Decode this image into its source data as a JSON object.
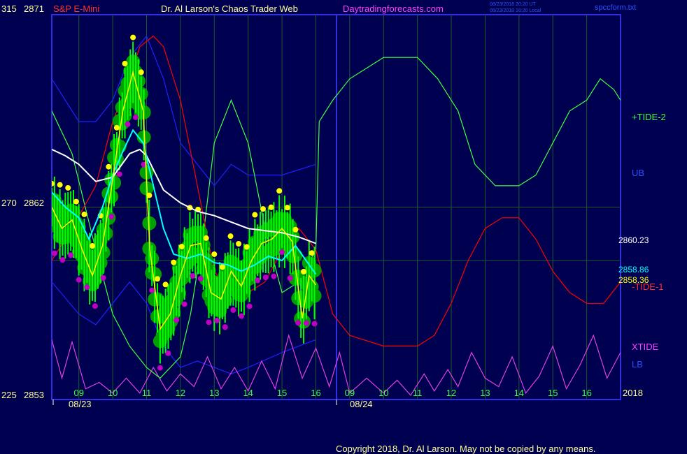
{
  "header": {
    "y_top": "315",
    "price_top": "2871",
    "symbol": "S&P E-Mini",
    "title": "Dr. Al Larson's Chaos Trader Web",
    "site": "Daytradingforecasts.com",
    "stamp_1": "08/23/2018 20:20 UT",
    "stamp_2": "08/23/2018 16:20 Local",
    "file": "spccform.txt"
  },
  "left_axis": [
    {
      "tide": "315",
      "price": "2871"
    },
    {
      "tide": "270",
      "price": "2862"
    },
    {
      "tide": "225",
      "price": "2853"
    }
  ],
  "x_axis": {
    "day1_hours": [
      "09",
      "10",
      "11",
      "12",
      "13",
      "14",
      "15",
      "16"
    ],
    "day2_hours": [
      "09",
      "10",
      "11",
      "12",
      "13",
      "14",
      "15",
      "16"
    ],
    "date1": "08/23",
    "date2": "08/24",
    "year": "2018"
  },
  "right_labels": {
    "tide2": "+TIDE-2",
    "ub": "UB",
    "price_white": "2860.23",
    "price_cyan": "2858.86",
    "price_yellow": "2858.36",
    "tide1": "-TIDE-1",
    "xtide": "XTIDE",
    "lb": "LB"
  },
  "footer": {
    "copyright": "Copyright 2018, Dr. Al Larson. May not be copied by any means."
  },
  "colors": {
    "background": "#000050",
    "frame": "#3030e0",
    "grid": "#1d5a2c",
    "price_bar": "#00ff00",
    "bubble": "#00a000",
    "yellow": "#ffff00",
    "magenta": "#c000c0",
    "cyan": "#00ffff",
    "white": "#ffffff",
    "tide1": "#ff0000",
    "tide2": "#40ff40",
    "bands": "#2020ff",
    "xtide": "#e040e0"
  },
  "chart_data": {
    "type": "line",
    "x_unit": "hour of session (day 1 = 9..16, day 2 = 9..16)",
    "y_unit": "price",
    "ylim": [
      2853,
      2871
    ],
    "series": [
      {
        "name": "+TIDE-2",
        "points": [
          [
            8.2,
            2866.5
          ],
          [
            8.8,
            2864.5
          ],
          [
            9.5,
            2860
          ],
          [
            10,
            2857
          ],
          [
            10.5,
            2855.5
          ],
          [
            11,
            2854.5
          ],
          [
            11.4,
            2854
          ],
          [
            12,
            2855
          ],
          [
            12.3,
            2857
          ],
          [
            12.7,
            2861
          ],
          [
            13,
            2865
          ],
          [
            13.5,
            2867
          ],
          [
            14,
            2865
          ],
          [
            14.5,
            2861
          ],
          [
            15,
            2858
          ],
          [
            15.5,
            2858.5
          ],
          [
            16,
            2860
          ],
          [
            16.1,
            2866
          ],
          [
            16.5,
            2867
          ],
          [
            17,
            2868
          ],
          [
            18,
            2869
          ],
          [
            19,
            2869
          ],
          [
            19.6,
            2868
          ],
          [
            20.2,
            2866.5
          ],
          [
            20.7,
            2864
          ],
          [
            21.3,
            2863
          ],
          [
            22,
            2863
          ],
          [
            22.5,
            2863.5
          ],
          [
            23,
            2865
          ],
          [
            23.5,
            2866.5
          ],
          [
            24,
            2867
          ],
          [
            24.4,
            2868
          ],
          [
            24.8,
            2867.5
          ],
          [
            25,
            2867
          ]
        ]
      },
      {
        "name": "-TIDE-1",
        "points": [
          [
            8.2,
            2859.5
          ],
          [
            8.8,
            2861
          ],
          [
            9.5,
            2863
          ],
          [
            10,
            2866
          ],
          [
            10.5,
            2868
          ],
          [
            10.8,
            2869.5
          ],
          [
            11.2,
            2870
          ],
          [
            11.5,
            2869.5
          ],
          [
            12,
            2867
          ],
          [
            12.5,
            2863
          ],
          [
            13,
            2859
          ],
          [
            13.5,
            2858
          ],
          [
            14,
            2858
          ],
          [
            14.5,
            2858.5
          ],
          [
            15,
            2860
          ],
          [
            15.5,
            2861
          ],
          [
            16,
            2860
          ],
          [
            16.5,
            2857
          ],
          [
            17,
            2856
          ],
          [
            18,
            2855.5
          ],
          [
            19,
            2855.5
          ],
          [
            19.5,
            2856
          ],
          [
            20,
            2857.5
          ],
          [
            20.5,
            2859.5
          ],
          [
            21,
            2861
          ],
          [
            21.5,
            2861.5
          ],
          [
            22,
            2861.5
          ],
          [
            22.5,
            2860.5
          ],
          [
            23,
            2859
          ],
          [
            23.5,
            2858
          ],
          [
            24,
            2857.5
          ],
          [
            24.5,
            2857.5
          ],
          [
            25,
            2858.5
          ]
        ]
      },
      {
        "name": "UB",
        "points": [
          [
            8.2,
            2868
          ],
          [
            9,
            2866
          ],
          [
            9.5,
            2866
          ],
          [
            10,
            2867
          ],
          [
            10.5,
            2869
          ],
          [
            11,
            2870
          ],
          [
            11.5,
            2868
          ],
          [
            12,
            2865
          ],
          [
            12.5,
            2864
          ],
          [
            13,
            2863
          ],
          [
            13.5,
            2864
          ],
          [
            14,
            2863.5
          ],
          [
            15,
            2863.5
          ],
          [
            16,
            2864
          ]
        ]
      },
      {
        "name": "LB",
        "points": [
          [
            8.2,
            2858.5
          ],
          [
            9,
            2857
          ],
          [
            9.5,
            2856.5
          ],
          [
            10,
            2857.5
          ],
          [
            10.5,
            2858.5
          ],
          [
            11,
            2857.5
          ],
          [
            11.5,
            2855.5
          ],
          [
            12,
            2854.5
          ],
          [
            12.5,
            2854.8
          ],
          [
            13,
            2854.5
          ],
          [
            13.5,
            2854.2
          ],
          [
            14,
            2854.5
          ],
          [
            15,
            2855.2
          ],
          [
            16,
            2855.8
          ]
        ]
      },
      {
        "name": "XTIDE",
        "points": [
          [
            8.2,
            2855.8
          ],
          [
            8.5,
            2854
          ],
          [
            8.8,
            2855.7
          ],
          [
            9.2,
            2853.5
          ],
          [
            9.6,
            2853.8
          ],
          [
            10,
            2853.3
          ],
          [
            10.4,
            2854
          ],
          [
            10.8,
            2853.3
          ],
          [
            11.2,
            2854.5
          ],
          [
            11.6,
            2853.4
          ],
          [
            12,
            2854.2
          ],
          [
            12.4,
            2853.6
          ],
          [
            12.8,
            2855
          ],
          [
            13.2,
            2853.5
          ],
          [
            13.6,
            2854.5
          ],
          [
            14,
            2853.4
          ],
          [
            14.4,
            2854.8
          ],
          [
            14.8,
            2853.5
          ],
          [
            15.2,
            2856
          ],
          [
            15.6,
            2854
          ],
          [
            16,
            2855.4
          ],
          [
            16.4,
            2853.6
          ],
          [
            16.7,
            2855.2
          ],
          [
            17,
            2853.3
          ],
          [
            17.5,
            2854
          ],
          [
            18,
            2853.3
          ],
          [
            18.4,
            2853.9
          ],
          [
            18.8,
            2853.2
          ],
          [
            19.2,
            2854.2
          ],
          [
            19.5,
            2853.4
          ],
          [
            19.9,
            2854.4
          ],
          [
            20.2,
            2853.6
          ],
          [
            20.6,
            2855.2
          ],
          [
            21,
            2854
          ],
          [
            21.4,
            2853.6
          ],
          [
            21.8,
            2855
          ],
          [
            22.2,
            2853.3
          ],
          [
            22.6,
            2854.1
          ],
          [
            23,
            2855.5
          ],
          [
            23.4,
            2853.5
          ],
          [
            23.8,
            2854.6
          ],
          [
            24.2,
            2856
          ],
          [
            24.6,
            2854
          ],
          [
            25,
            2855.2
          ]
        ]
      },
      {
        "name": "white",
        "points": [
          [
            8.2,
            2864.7
          ],
          [
            8.6,
            2864.4
          ],
          [
            9,
            2864
          ],
          [
            9.5,
            2863.2
          ],
          [
            10,
            2863.4
          ],
          [
            10.5,
            2864.5
          ],
          [
            10.8,
            2864.7
          ],
          [
            11,
            2864.4
          ],
          [
            11.5,
            2862.8
          ],
          [
            12,
            2862.2
          ],
          [
            12.5,
            2861.8
          ],
          [
            13,
            2861.6
          ],
          [
            13.5,
            2861.3
          ],
          [
            14,
            2861
          ],
          [
            14.5,
            2860.9
          ],
          [
            15,
            2860.8
          ],
          [
            15.5,
            2860.6
          ],
          [
            16,
            2860.3
          ]
        ]
      },
      {
        "name": "cyan",
        "points": [
          [
            8.2,
            2862.7
          ],
          [
            8.6,
            2862
          ],
          [
            9,
            2861.5
          ],
          [
            9.3,
            2860.5
          ],
          [
            9.7,
            2862
          ],
          [
            10,
            2863.5
          ],
          [
            10.3,
            2864.6
          ],
          [
            10.6,
            2865.6
          ],
          [
            10.9,
            2865
          ],
          [
            11.2,
            2863
          ],
          [
            11.5,
            2861
          ],
          [
            11.8,
            2859.8
          ],
          [
            12.2,
            2859.6
          ],
          [
            12.6,
            2859.8
          ],
          [
            13,
            2859.4
          ],
          [
            13.4,
            2859.3
          ],
          [
            13.8,
            2859
          ],
          [
            14.2,
            2859.3
          ],
          [
            14.6,
            2859.7
          ],
          [
            15,
            2859.5
          ],
          [
            15.4,
            2860.2
          ],
          [
            15.8,
            2859.3
          ],
          [
            16,
            2858.86
          ]
        ]
      },
      {
        "name": "yellow",
        "points": [
          [
            8.2,
            2862
          ],
          [
            8.5,
            2861
          ],
          [
            8.8,
            2861.4
          ],
          [
            9.1,
            2860
          ],
          [
            9.4,
            2858.8
          ],
          [
            9.7,
            2860.2
          ],
          [
            10,
            2863.3
          ],
          [
            10.3,
            2866.5
          ],
          [
            10.6,
            2868.3
          ],
          [
            10.9,
            2866.5
          ],
          [
            11.1,
            2860
          ],
          [
            11.4,
            2856.3
          ],
          [
            11.7,
            2857
          ],
          [
            12,
            2858.8
          ],
          [
            12.3,
            2860.2
          ],
          [
            12.6,
            2860.3
          ],
          [
            12.9,
            2858
          ],
          [
            13.2,
            2857.7
          ],
          [
            13.5,
            2859
          ],
          [
            13.8,
            2858.3
          ],
          [
            14.1,
            2859.5
          ],
          [
            14.4,
            2860.3
          ],
          [
            14.7,
            2860.5
          ],
          [
            15,
            2861
          ],
          [
            15.3,
            2860.4
          ],
          [
            15.6,
            2856.8
          ],
          [
            15.8,
            2858.8
          ],
          [
            16,
            2858.36
          ]
        ]
      }
    ]
  }
}
